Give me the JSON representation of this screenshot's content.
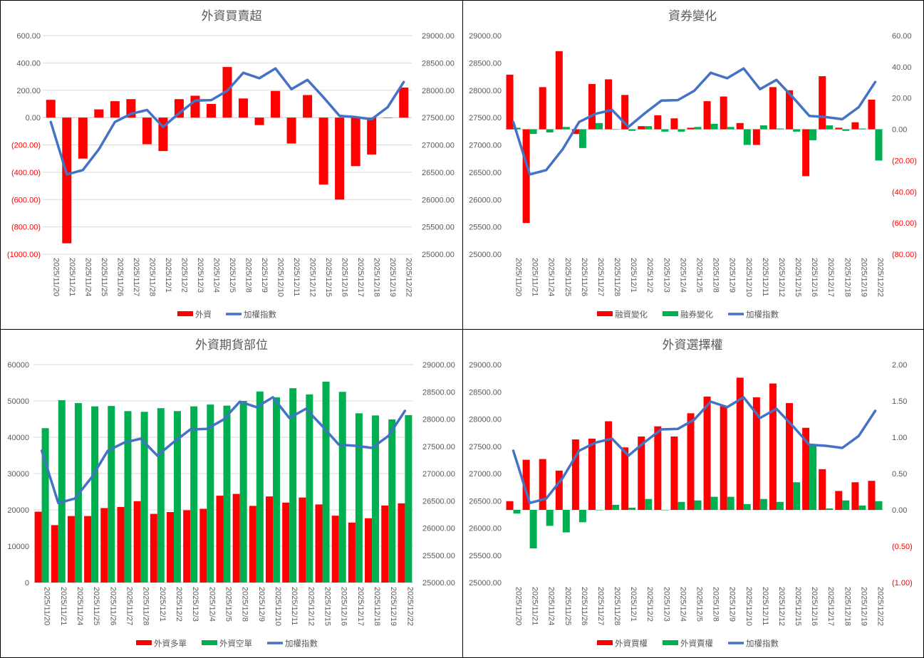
{
  "colors": {
    "red": "#ff0000",
    "green": "#00b050",
    "blue": "#4472c4",
    "grid": "#d9d9d9",
    "text": "#595959",
    "negative_text": "#ff0000"
  },
  "dates": [
    "2025/11/20",
    "2025/11/21",
    "2025/11/24",
    "2025/11/25",
    "2025/11/26",
    "2025/11/27",
    "2025/11/28",
    "2025/12/1",
    "2025/12/2",
    "2025/12/3",
    "2025/12/4",
    "2025/12/5",
    "2025/12/8",
    "2025/12/9",
    "2025/12/10",
    "2025/12/11",
    "2025/12/12",
    "2025/12/15",
    "2025/12/16",
    "2025/12/17",
    "2025/12/18",
    "2025/12/19",
    "2025/12/22"
  ],
  "chart_data": [
    {
      "type": "bar",
      "title": "外資買賣超",
      "legend_position": "bottom",
      "gridlines": true,
      "left_axis": {
        "min": -1000,
        "max": 600,
        "step": 200,
        "format": "accounting2"
      },
      "right_axis": {
        "min": 25000,
        "max": 29000,
        "step": 500,
        "format": "fixed2"
      },
      "series": [
        {
          "name": "外資",
          "kind": "bar",
          "axis": "left",
          "color": "#ff0000",
          "values": [
            130,
            -920,
            -300,
            60,
            120,
            135,
            -195,
            -245,
            135,
            160,
            100,
            370,
            140,
            -55,
            195,
            -190,
            165,
            -490,
            -600,
            -355,
            -270,
            0,
            220
          ]
        },
        {
          "name": "加權指數",
          "kind": "line",
          "axis": "right",
          "color": "#4472c4",
          "values": [
            27420,
            26460,
            26540,
            26920,
            27420,
            27570,
            27640,
            27330,
            27580,
            27810,
            27820,
            27990,
            28320,
            28220,
            28400,
            28020,
            28190,
            27870,
            27530,
            27510,
            27470,
            27690,
            28150
          ]
        }
      ]
    },
    {
      "type": "bar",
      "title": "資券變化",
      "legend_position": "bottom",
      "gridlines": false,
      "left_axis": {
        "min": 25000,
        "max": 29000,
        "step": 500,
        "format": "fixed2"
      },
      "right_axis": {
        "min": -80,
        "max": 60,
        "step": 20,
        "format": "accounting2"
      },
      "series": [
        {
          "name": "融資變化",
          "kind": "bar",
          "axis": "right",
          "color": "#ff0000",
          "values": [
            35,
            -60,
            27,
            50,
            -3,
            29,
            32,
            22,
            2,
            9,
            7,
            1,
            18,
            21,
            4,
            -10,
            27,
            25,
            -30,
            34,
            1,
            4.5,
            19
          ]
        },
        {
          "name": "融券變化",
          "kind": "bar",
          "axis": "right",
          "color": "#00b050",
          "values": [
            1,
            -3,
            -2,
            1.5,
            -12,
            4,
            0,
            -1,
            2,
            -1.5,
            -1.5,
            1.5,
            3.5,
            1.5,
            -10,
            2.5,
            0.5,
            -1.5,
            -7,
            2.5,
            -1,
            0.5,
            -20
          ]
        },
        {
          "name": "加權指數",
          "kind": "line",
          "axis": "left",
          "color": "#4472c4",
          "values": [
            27420,
            26460,
            26540,
            26920,
            27420,
            27570,
            27640,
            27330,
            27580,
            27810,
            27820,
            27990,
            28320,
            28220,
            28400,
            28020,
            28190,
            27870,
            27530,
            27510,
            27470,
            27690,
            28150
          ]
        }
      ]
    },
    {
      "type": "bar",
      "title": "外資期貨部位",
      "legend_position": "bottom",
      "gridlines": true,
      "left_axis": {
        "min": 0,
        "max": 60000,
        "step": 10000,
        "format": "int"
      },
      "right_axis": {
        "min": 25000,
        "max": 29000,
        "step": 500,
        "format": "fixed2"
      },
      "series": [
        {
          "name": "外資多單",
          "kind": "bar",
          "axis": "left",
          "color": "#ff0000",
          "values": [
            19500,
            15800,
            18300,
            18300,
            20500,
            20800,
            22400,
            18900,
            19400,
            19900,
            20300,
            23900,
            24400,
            21100,
            23700,
            22000,
            23400,
            21500,
            18400,
            16500,
            17700,
            21200,
            21800
          ]
        },
        {
          "name": "外資空單",
          "kind": "bar",
          "axis": "left",
          "color": "#00b050",
          "values": [
            42500,
            50200,
            49400,
            48500,
            48600,
            47200,
            47000,
            48000,
            47200,
            48500,
            49000,
            48700,
            50000,
            52600,
            51000,
            53500,
            51800,
            55300,
            52500,
            46600,
            46000,
            44900,
            46100
          ]
        },
        {
          "name": "加權指數",
          "kind": "line",
          "axis": "right",
          "color": "#4472c4",
          "values": [
            27420,
            26460,
            26540,
            26920,
            27420,
            27570,
            27640,
            27330,
            27580,
            27810,
            27820,
            27990,
            28320,
            28220,
            28400,
            28020,
            28190,
            27870,
            27530,
            27510,
            27470,
            27690,
            28150
          ]
        }
      ]
    },
    {
      "type": "bar",
      "title": "外資選擇權",
      "legend_position": "bottom",
      "gridlines": false,
      "left_axis": {
        "min": 25000,
        "max": 29000,
        "step": 500,
        "format": "fixed2"
      },
      "right_axis": {
        "min": -1,
        "max": 2,
        "step": 0.5,
        "format": "accounting2"
      },
      "series": [
        {
          "name": "外資買權",
          "kind": "bar",
          "axis": "right",
          "color": "#ff0000",
          "values": [
            0.12,
            0.69,
            0.7,
            0.54,
            0.97,
            0.98,
            1.22,
            0.86,
            1.01,
            1.15,
            1.01,
            1.33,
            1.56,
            1.43,
            1.82,
            1.55,
            1.74,
            1.47,
            1.13,
            0.56,
            0.26,
            0.38,
            0.4
          ]
        },
        {
          "name": "外資賣權",
          "kind": "bar",
          "axis": "right",
          "color": "#00b050",
          "values": [
            -0.05,
            -0.53,
            -0.22,
            -0.31,
            -0.17,
            0,
            0.07,
            0.03,
            0.15,
            0,
            0.11,
            0.13,
            0.18,
            0.18,
            0.08,
            0.15,
            0.11,
            0.38,
            0.9,
            0.02,
            0.13,
            0.06,
            0.12
          ]
        },
        {
          "name": "加權指數",
          "kind": "line",
          "axis": "left",
          "color": "#4472c4",
          "values": [
            27420,
            26460,
            26540,
            26920,
            27420,
            27570,
            27640,
            27330,
            27580,
            27810,
            27820,
            27990,
            28320,
            28220,
            28400,
            28020,
            28190,
            27870,
            27530,
            27510,
            27470,
            27690,
            28150
          ]
        }
      ]
    }
  ]
}
